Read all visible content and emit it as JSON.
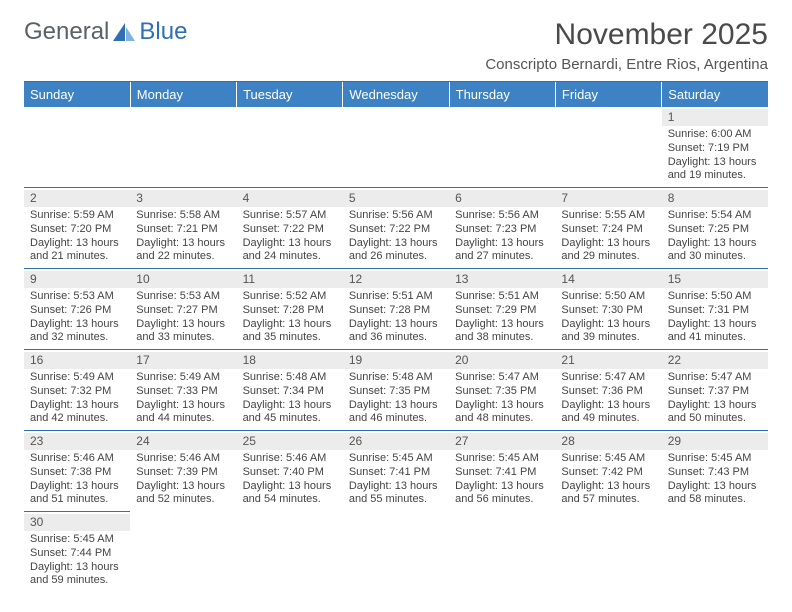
{
  "colors": {
    "header_bg": "#3d82c4",
    "header_text": "#ffffff",
    "row_divider": "#2f6fb3",
    "daynum_bg": "#ececec",
    "body_text": "#444444",
    "logo_gray": "#5b5f66",
    "logo_blue": "#2f6fb3",
    "logo_light": "#7fb4e0"
  },
  "logo": {
    "part1": "General",
    "part2": "Blue"
  },
  "title": "November 2025",
  "subtitle": "Conscripto Bernardi, Entre Rios, Argentina",
  "weekdays": [
    "Sunday",
    "Monday",
    "Tuesday",
    "Wednesday",
    "Thursday",
    "Friday",
    "Saturday"
  ],
  "cells": [
    {
      "n": "",
      "t": ""
    },
    {
      "n": "",
      "t": ""
    },
    {
      "n": "",
      "t": ""
    },
    {
      "n": "",
      "t": ""
    },
    {
      "n": "",
      "t": ""
    },
    {
      "n": "",
      "t": ""
    },
    {
      "n": "1",
      "r": "Sunrise: 6:00 AM",
      "s": "Sunset: 7:19 PM",
      "d1": "Daylight: 13 hours",
      "d2": "and 19 minutes."
    },
    {
      "n": "2",
      "r": "Sunrise: 5:59 AM",
      "s": "Sunset: 7:20 PM",
      "d1": "Daylight: 13 hours",
      "d2": "and 21 minutes."
    },
    {
      "n": "3",
      "r": "Sunrise: 5:58 AM",
      "s": "Sunset: 7:21 PM",
      "d1": "Daylight: 13 hours",
      "d2": "and 22 minutes."
    },
    {
      "n": "4",
      "r": "Sunrise: 5:57 AM",
      "s": "Sunset: 7:22 PM",
      "d1": "Daylight: 13 hours",
      "d2": "and 24 minutes."
    },
    {
      "n": "5",
      "r": "Sunrise: 5:56 AM",
      "s": "Sunset: 7:22 PM",
      "d1": "Daylight: 13 hours",
      "d2": "and 26 minutes."
    },
    {
      "n": "6",
      "r": "Sunrise: 5:56 AM",
      "s": "Sunset: 7:23 PM",
      "d1": "Daylight: 13 hours",
      "d2": "and 27 minutes."
    },
    {
      "n": "7",
      "r": "Sunrise: 5:55 AM",
      "s": "Sunset: 7:24 PM",
      "d1": "Daylight: 13 hours",
      "d2": "and 29 minutes."
    },
    {
      "n": "8",
      "r": "Sunrise: 5:54 AM",
      "s": "Sunset: 7:25 PM",
      "d1": "Daylight: 13 hours",
      "d2": "and 30 minutes."
    },
    {
      "n": "9",
      "r": "Sunrise: 5:53 AM",
      "s": "Sunset: 7:26 PM",
      "d1": "Daylight: 13 hours",
      "d2": "and 32 minutes."
    },
    {
      "n": "10",
      "r": "Sunrise: 5:53 AM",
      "s": "Sunset: 7:27 PM",
      "d1": "Daylight: 13 hours",
      "d2": "and 33 minutes."
    },
    {
      "n": "11",
      "r": "Sunrise: 5:52 AM",
      "s": "Sunset: 7:28 PM",
      "d1": "Daylight: 13 hours",
      "d2": "and 35 minutes."
    },
    {
      "n": "12",
      "r": "Sunrise: 5:51 AM",
      "s": "Sunset: 7:28 PM",
      "d1": "Daylight: 13 hours",
      "d2": "and 36 minutes."
    },
    {
      "n": "13",
      "r": "Sunrise: 5:51 AM",
      "s": "Sunset: 7:29 PM",
      "d1": "Daylight: 13 hours",
      "d2": "and 38 minutes."
    },
    {
      "n": "14",
      "r": "Sunrise: 5:50 AM",
      "s": "Sunset: 7:30 PM",
      "d1": "Daylight: 13 hours",
      "d2": "and 39 minutes."
    },
    {
      "n": "15",
      "r": "Sunrise: 5:50 AM",
      "s": "Sunset: 7:31 PM",
      "d1": "Daylight: 13 hours",
      "d2": "and 41 minutes."
    },
    {
      "n": "16",
      "r": "Sunrise: 5:49 AM",
      "s": "Sunset: 7:32 PM",
      "d1": "Daylight: 13 hours",
      "d2": "and 42 minutes."
    },
    {
      "n": "17",
      "r": "Sunrise: 5:49 AM",
      "s": "Sunset: 7:33 PM",
      "d1": "Daylight: 13 hours",
      "d2": "and 44 minutes."
    },
    {
      "n": "18",
      "r": "Sunrise: 5:48 AM",
      "s": "Sunset: 7:34 PM",
      "d1": "Daylight: 13 hours",
      "d2": "and 45 minutes."
    },
    {
      "n": "19",
      "r": "Sunrise: 5:48 AM",
      "s": "Sunset: 7:35 PM",
      "d1": "Daylight: 13 hours",
      "d2": "and 46 minutes."
    },
    {
      "n": "20",
      "r": "Sunrise: 5:47 AM",
      "s": "Sunset: 7:35 PM",
      "d1": "Daylight: 13 hours",
      "d2": "and 48 minutes."
    },
    {
      "n": "21",
      "r": "Sunrise: 5:47 AM",
      "s": "Sunset: 7:36 PM",
      "d1": "Daylight: 13 hours",
      "d2": "and 49 minutes."
    },
    {
      "n": "22",
      "r": "Sunrise: 5:47 AM",
      "s": "Sunset: 7:37 PM",
      "d1": "Daylight: 13 hours",
      "d2": "and 50 minutes."
    },
    {
      "n": "23",
      "r": "Sunrise: 5:46 AM",
      "s": "Sunset: 7:38 PM",
      "d1": "Daylight: 13 hours",
      "d2": "and 51 minutes."
    },
    {
      "n": "24",
      "r": "Sunrise: 5:46 AM",
      "s": "Sunset: 7:39 PM",
      "d1": "Daylight: 13 hours",
      "d2": "and 52 minutes."
    },
    {
      "n": "25",
      "r": "Sunrise: 5:46 AM",
      "s": "Sunset: 7:40 PM",
      "d1": "Daylight: 13 hours",
      "d2": "and 54 minutes."
    },
    {
      "n": "26",
      "r": "Sunrise: 5:45 AM",
      "s": "Sunset: 7:41 PM",
      "d1": "Daylight: 13 hours",
      "d2": "and 55 minutes."
    },
    {
      "n": "27",
      "r": "Sunrise: 5:45 AM",
      "s": "Sunset: 7:41 PM",
      "d1": "Daylight: 13 hours",
      "d2": "and 56 minutes."
    },
    {
      "n": "28",
      "r": "Sunrise: 5:45 AM",
      "s": "Sunset: 7:42 PM",
      "d1": "Daylight: 13 hours",
      "d2": "and 57 minutes."
    },
    {
      "n": "29",
      "r": "Sunrise: 5:45 AM",
      "s": "Sunset: 7:43 PM",
      "d1": "Daylight: 13 hours",
      "d2": "and 58 minutes."
    },
    {
      "n": "30",
      "r": "Sunrise: 5:45 AM",
      "s": "Sunset: 7:44 PM",
      "d1": "Daylight: 13 hours",
      "d2": "and 59 minutes."
    },
    {
      "n": "",
      "t": ""
    },
    {
      "n": "",
      "t": ""
    },
    {
      "n": "",
      "t": ""
    },
    {
      "n": "",
      "t": ""
    },
    {
      "n": "",
      "t": ""
    },
    {
      "n": "",
      "t": ""
    }
  ]
}
